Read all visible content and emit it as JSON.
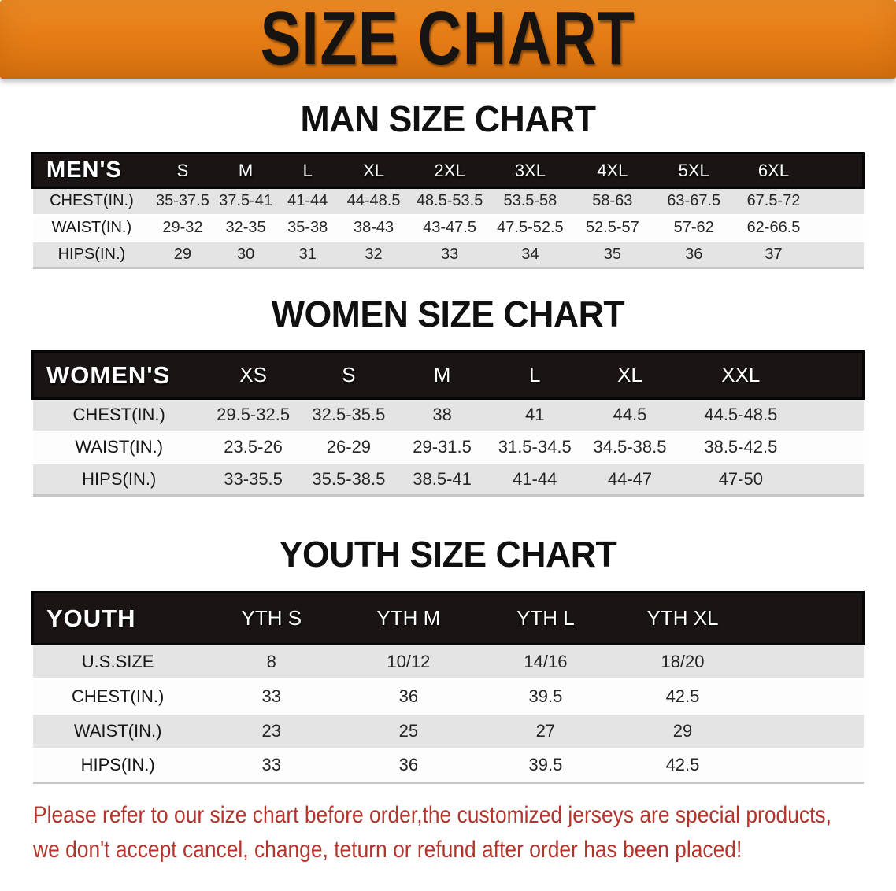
{
  "banner": {
    "title": "SIZE CHART"
  },
  "sections": {
    "men": {
      "heading": "MAN SIZE CHART",
      "table": {
        "label": "MEN'S",
        "columns": [
          "S",
          "M",
          "L",
          "XL",
          "2XL",
          "3XL",
          "4XL",
          "5XL",
          "6XL"
        ],
        "rows": [
          {
            "label": "CHEST(IN.)",
            "values": [
              "35-37.5",
              "37.5-41",
              "41-44",
              "44-48.5",
              "48.5-53.5",
              "53.5-58",
              "58-63",
              "63-67.5",
              "67.5-72"
            ]
          },
          {
            "label": "WAIST(IN.)",
            "values": [
              "29-32",
              "32-35",
              "35-38",
              "38-43",
              "43-47.5",
              "47.5-52.5",
              "52.5-57",
              "57-62",
              "62-66.5"
            ]
          },
          {
            "label": "HIPS(IN.)",
            "values": [
              "29",
              "30",
              "31",
              "32",
              "33",
              "34",
              "35",
              "36",
              "37"
            ]
          }
        ]
      }
    },
    "women": {
      "heading": "WOMEN SIZE CHART",
      "table": {
        "label": "WOMEN'S",
        "columns": [
          "XS",
          "S",
          "M",
          "L",
          "XL",
          "XXL"
        ],
        "rows": [
          {
            "label": "CHEST(IN.)",
            "values": [
              "29.5-32.5",
              "32.5-35.5",
              "38",
              "41",
              "44.5",
              "44.5-48.5"
            ]
          },
          {
            "label": "WAIST(IN.)",
            "values": [
              "23.5-26",
              "26-29",
              "29-31.5",
              "31.5-34.5",
              "34.5-38.5",
              "38.5-42.5"
            ]
          },
          {
            "label": "HIPS(IN.)",
            "values": [
              "33-35.5",
              "35.5-38.5",
              "38.5-41",
              "41-44",
              "44-47",
              "47-50"
            ]
          }
        ]
      }
    },
    "youth": {
      "heading": "YOUTH SIZE CHART",
      "table": {
        "label": "YOUTH",
        "columns": [
          "YTH S",
          "YTH M",
          "YTH L",
          "YTH XL"
        ],
        "rows": [
          {
            "label": "U.S.SIZE",
            "values": [
              "8",
              "10/12",
              "14/16",
              "18/20"
            ]
          },
          {
            "label": "CHEST(IN.)",
            "values": [
              "33",
              "36",
              "39.5",
              "42.5"
            ]
          },
          {
            "label": "WAIST(IN.)",
            "values": [
              "23",
              "25",
              "27",
              "29"
            ]
          },
          {
            "label": "HIPS(IN.)",
            "values": [
              "33",
              "36",
              "39.5",
              "42.5"
            ]
          }
        ]
      }
    }
  },
  "disclaimer": {
    "line1": "Please refer to our size chart before order,the customized jerseys are special products,",
    "line2": "we don't accept cancel, change, teturn or refund after order has been placed!"
  },
  "colors": {
    "banner_orange": "#E67E17",
    "table_header_black": "#1A1514",
    "row_stripe_gray": "#E4E4E4",
    "disclaimer_red": "#B2342B"
  }
}
